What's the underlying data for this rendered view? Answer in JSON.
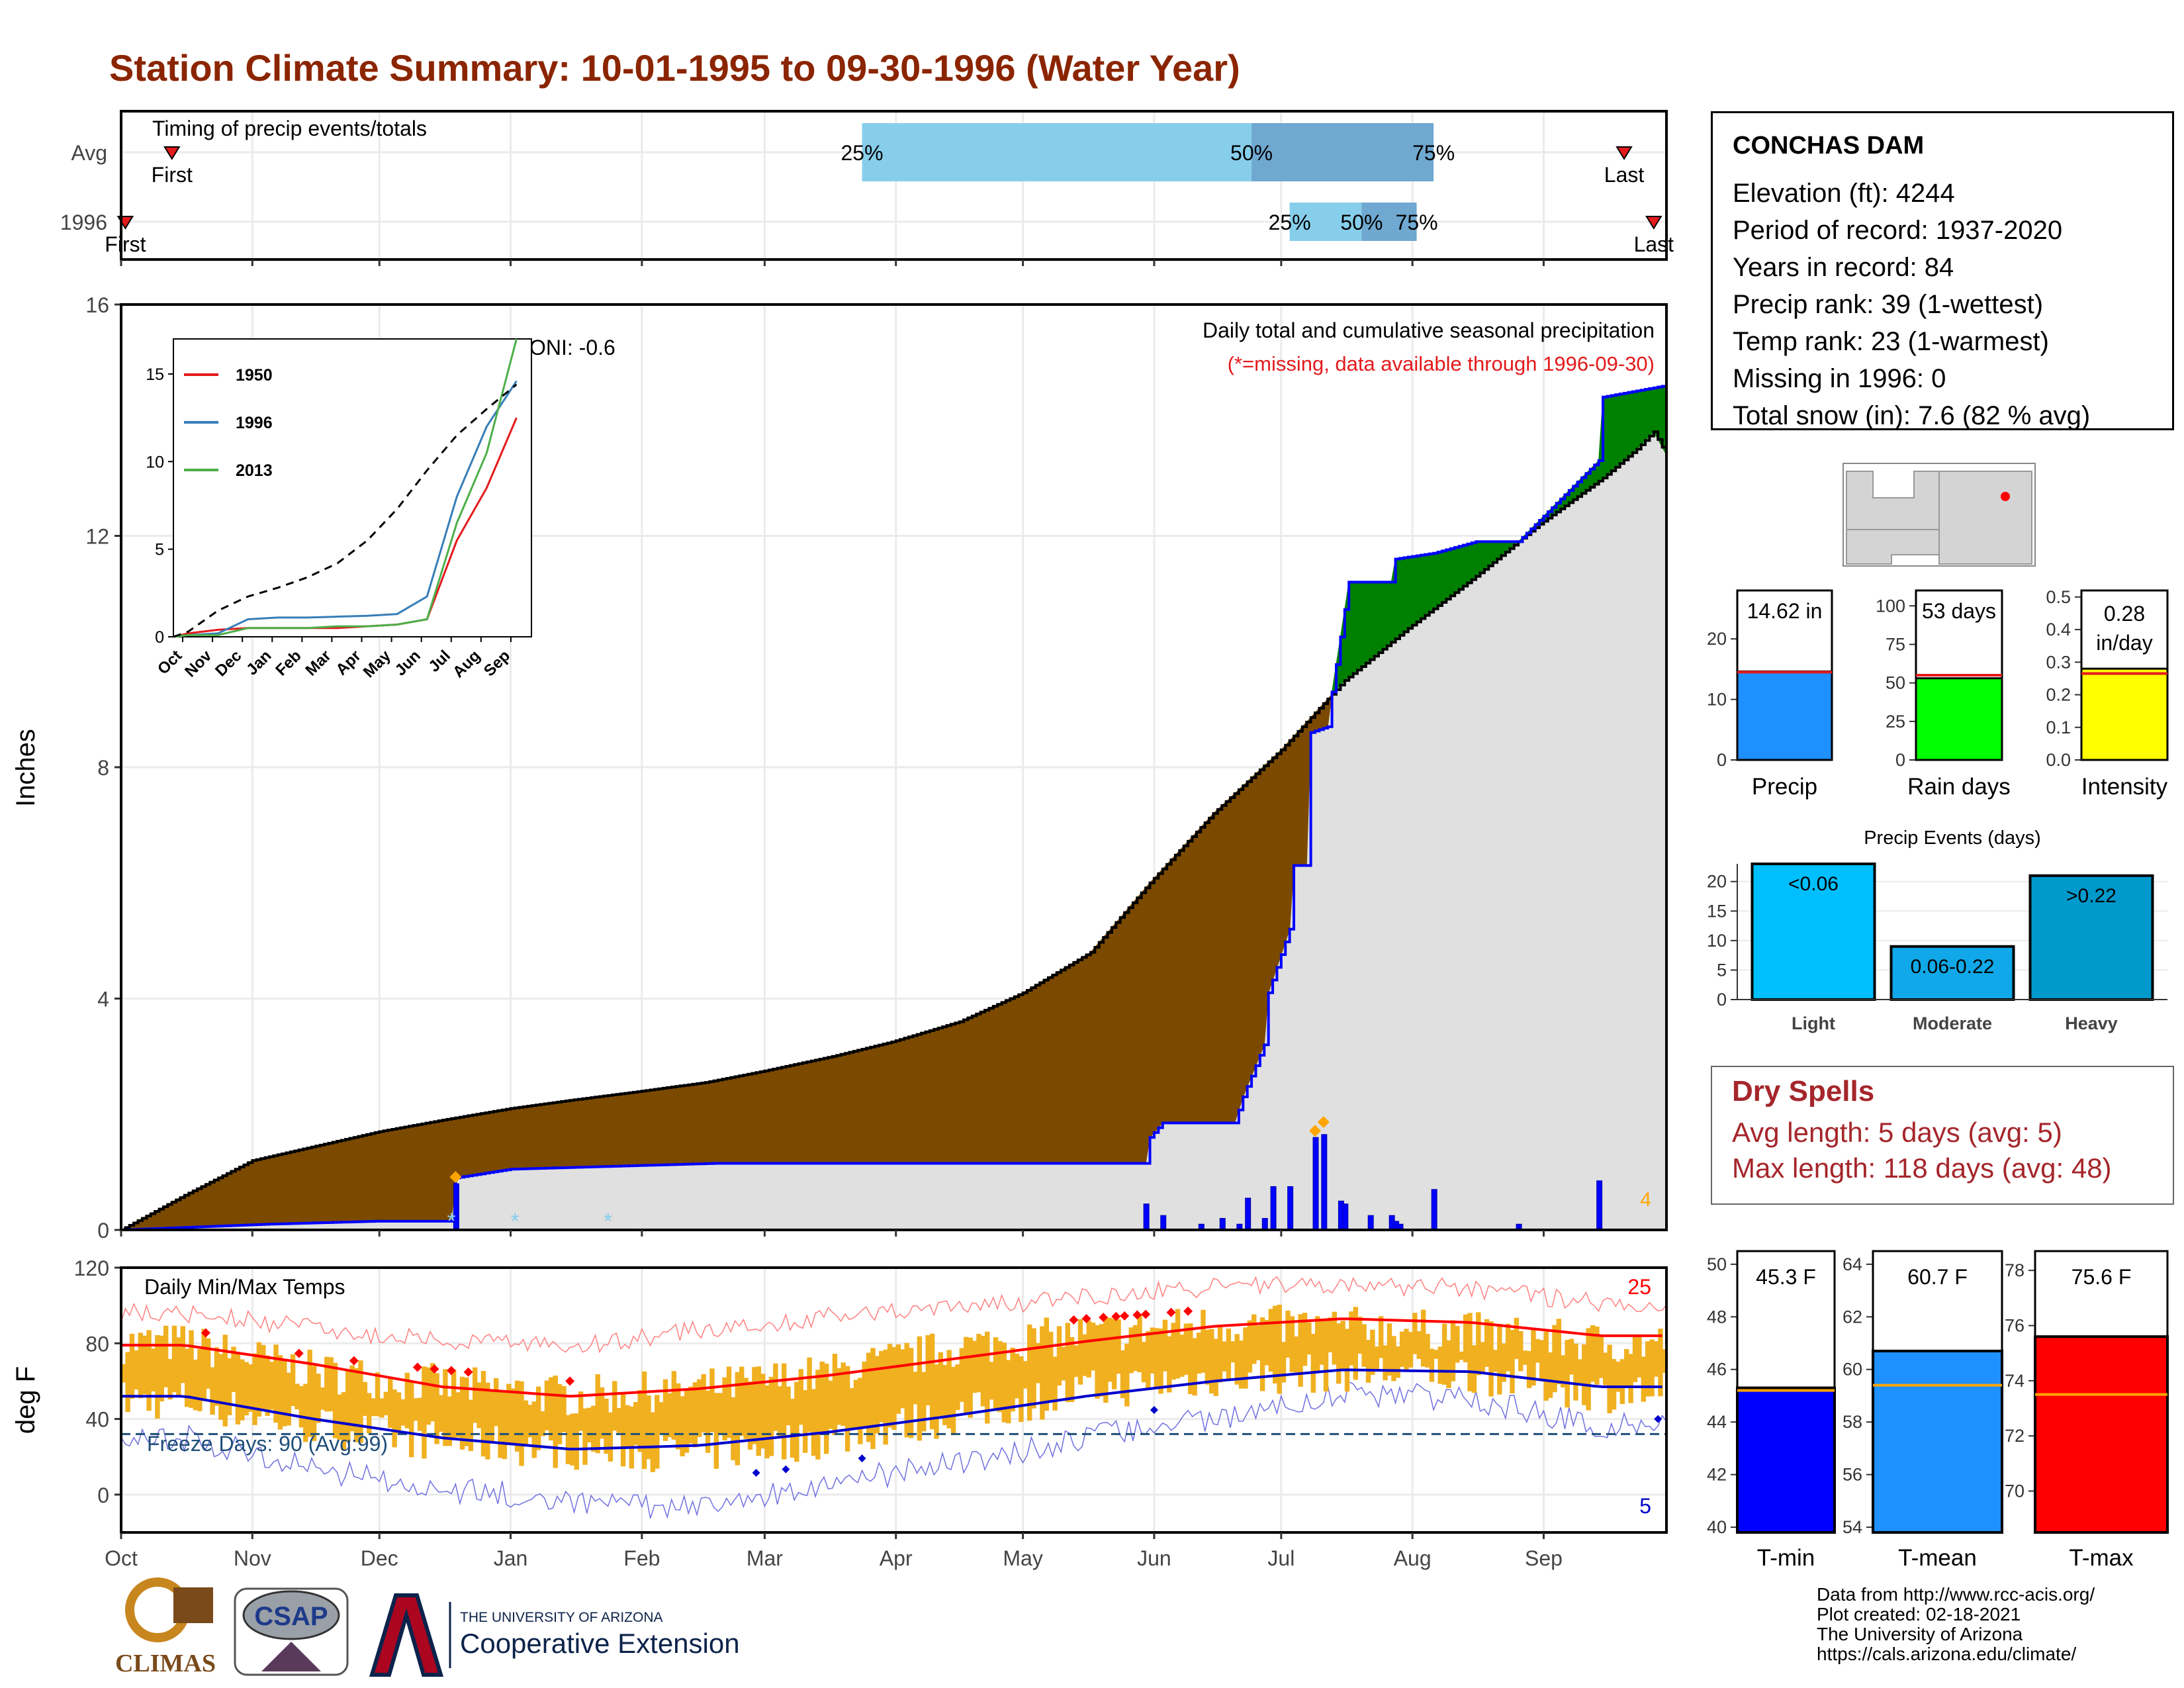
{
  "header": {
    "title": "Station Climate Summary: 10-01-1995 to 09-30-1996 (Water Year)"
  },
  "timing_panel": {
    "label": "Timing of precip events/totals",
    "rows": [
      {
        "label": "Avg",
        "first_label": "First",
        "last_label": "Last",
        "p25_label": "25%",
        "p50_label": "50%",
        "p75_label": "75%",
        "first_day": 12,
        "p25_day": 175,
        "p50_day": 267,
        "p75_day": 310,
        "last_day": 355
      },
      {
        "label": "1996",
        "first_label": "First",
        "last_label": "Last",
        "p25_label": "25%",
        "p50_label": "50%",
        "p75_label": "75%",
        "first_day": 1,
        "p25_day": 276,
        "p50_day": 293,
        "p75_day": 306,
        "last_day": 362
      }
    ]
  },
  "precip_panel": {
    "ylabel": "Inches",
    "yticks": [
      "0",
      "4",
      "8",
      "12",
      "16"
    ],
    "oni_text": "ONI: -0.6",
    "caption": "Daily total and cumulative seasonal precipitation",
    "missing_note": "(*=missing, data available through 1996-09-30)",
    "corner_number": "4",
    "colors": {
      "avg_fill": "#7B4A00",
      "above_fill": "#008000",
      "cum_line": "#0000FF",
      "avg_area": "#E0E0E0",
      "daily_bar": "#0000FF",
      "max_marker": "#FFA500",
      "missing_marker": "#87CEEB"
    }
  },
  "inset": {
    "yticks": [
      "0",
      "5",
      "10",
      "15"
    ],
    "months": [
      "Oct",
      "Nov",
      "Dec",
      "Jan",
      "Feb",
      "Mar",
      "Apr",
      "May",
      "Jun",
      "Jul",
      "Aug",
      "Sep"
    ],
    "legend": [
      {
        "name": "1950",
        "color": "#E41A1C"
      },
      {
        "name": "1996",
        "color": "#377EB8"
      },
      {
        "name": "2013",
        "color": "#4DAF4A"
      }
    ]
  },
  "temp_panel": {
    "label": "Daily Min/Max Temps",
    "ylabel": "deg F",
    "yticks": [
      "0",
      "40",
      "80",
      "120"
    ],
    "freeze_text": "Freeze Days: 90 (Avg:99)",
    "high_count": "25",
    "low_count": "5",
    "colors": {
      "range_bar": "#F0B020",
      "avg_max": "#FF0000",
      "avg_min": "#0000CD",
      "freeze_line": "#1F4E79",
      "record_high": "#FF0000",
      "record_low": "#0000CD"
    }
  },
  "months": [
    "Oct",
    "Nov",
    "Dec",
    "Jan",
    "Feb",
    "Mar",
    "Apr",
    "May",
    "Jun",
    "Jul",
    "Aug",
    "Sep"
  ],
  "station": {
    "name": "CONCHAS DAM",
    "lines": [
      "Elevation (ft): 4244",
      "Period of record: 1937-2020",
      "Years in record: 84",
      "Precip rank: 39 (1-wettest)",
      "Temp rank: 23 (1-warmest)",
      "Missing in 1996: 0",
      "Total snow (in): 7.6 (82 % avg)"
    ]
  },
  "minibars": {
    "precip": {
      "label": "Precip",
      "value_label": "14.62 in",
      "value": 14.62,
      "avg": 14.5,
      "ymax": 28,
      "ticks": [
        "0",
        "10",
        "20"
      ],
      "color": "#1E90FF"
    },
    "raindays": {
      "label": "Rain days",
      "value_label": "53 days",
      "value": 53,
      "avg": 55,
      "ymax": 110,
      "ticks": [
        "0",
        "25",
        "50",
        "75",
        "100"
      ],
      "color": "#00FF00"
    },
    "intensity": {
      "label": "Intensity",
      "value_label_1": "0.28",
      "value_label_2": "in/day",
      "value": 0.28,
      "avg": 0.265,
      "ymax": 0.52,
      "ticks": [
        "0.0",
        "0.1",
        "0.2",
        "0.3",
        "0.4",
        "0.5"
      ],
      "color": "#FFFF00"
    }
  },
  "events": {
    "title": "Precip Events (days)",
    "ticks": [
      "0",
      "5",
      "10",
      "15",
      "20"
    ],
    "categories": [
      "Light",
      "Moderate",
      "Heavy"
    ],
    "bar_labels": [
      "<0.06",
      "0.06-0.22",
      ">0.22"
    ],
    "values": [
      23,
      9,
      21
    ],
    "colors": [
      "#00BFFF",
      "#10A8E8",
      "#0099CC"
    ]
  },
  "dry_spells": {
    "title": "Dry Spells",
    "avg_line": "Avg length: 5 days (avg: 5)",
    "max_line": "Max length: 118 days (avg: 48)"
  },
  "temp_bars": {
    "tmin": {
      "label": "T-min",
      "value_label": "45.3 F",
      "value": 45.3,
      "avg": 45.2,
      "range": [
        40,
        50
      ],
      "ticks": [
        "40",
        "42",
        "44",
        "46",
        "48",
        "50"
      ],
      "color": "#0000FF"
    },
    "tmean": {
      "label": "T-mean",
      "value_label": "60.7 F",
      "value": 60.7,
      "avg": 59.4,
      "range": [
        54,
        64
      ],
      "ticks": [
        "54",
        "56",
        "58",
        "60",
        "62",
        "64"
      ],
      "color": "#1E90FF"
    },
    "tmax": {
      "label": "T-max",
      "value_label": "75.6 F",
      "value": 75.6,
      "avg": 73.5,
      "range": [
        68,
        78
      ],
      "ticks": [
        "70",
        "72",
        "74",
        "76",
        "78"
      ],
      "color": "#FF0000"
    }
  },
  "chart_data": [
    {
      "type": "area",
      "title": "Daily total and cumulative seasonal precipitation",
      "ylabel": "Inches",
      "ylim": [
        0,
        16
      ],
      "x_unit": "day of water year (Oct 1 = 0)",
      "series": [
        {
          "name": "Average cumulative",
          "x": [
            0,
            15,
            31,
            46,
            61,
            76,
            92,
            107,
            123,
            138,
            152,
            168,
            182,
            198,
            213,
            229,
            243,
            258,
            274,
            289,
            304,
            320,
            335,
            350,
            358,
            362,
            365
          ],
          "y": [
            0,
            0.6,
            1.2,
            1.45,
            1.7,
            1.9,
            2.1,
            2.25,
            2.4,
            2.55,
            2.75,
            3.0,
            3.25,
            3.6,
            4.1,
            4.8,
            6.0,
            7.2,
            8.3,
            9.5,
            10.4,
            11.3,
            12.2,
            13.0,
            13.5,
            13.8,
            13.4
          ]
        },
        {
          "name": "1996 cumulative",
          "x": [
            0,
            35,
            60,
            78,
            79,
            92,
            116,
            140,
            242,
            243,
            246,
            263,
            265,
            270,
            271,
            276,
            277,
            280,
            281,
            285,
            286,
            290,
            300,
            301,
            310,
            320,
            330,
            349,
            350,
            365
          ],
          "y": [
            0,
            0.1,
            0.15,
            0.15,
            0.9,
            1.05,
            1.1,
            1.15,
            1.15,
            1.6,
            1.85,
            1.85,
            2.3,
            3.2,
            4.1,
            5.2,
            6.3,
            6.3,
            8.6,
            8.7,
            9.3,
            11.2,
            11.2,
            11.6,
            11.7,
            11.9,
            11.9,
            13.3,
            14.4,
            14.6
          ]
        },
        {
          "name": "1996 daily",
          "x": [
            79,
            242,
            246,
            255,
            260,
            264,
            266,
            270,
            272,
            276,
            282,
            284,
            288,
            289,
            295,
            300,
            301,
            302,
            310,
            330,
            349
          ],
          "y": [
            0.8,
            0.45,
            0.25,
            0.1,
            0.2,
            0.1,
            0.55,
            0.2,
            0.75,
            0.75,
            1.6,
            1.65,
            0.5,
            0.45,
            0.25,
            0.25,
            0.15,
            0.1,
            0.7,
            0.1,
            0.85
          ]
        }
      ]
    },
    {
      "type": "line",
      "title": "",
      "xlabel": "",
      "ylabel": "",
      "ylim": [
        0,
        17
      ],
      "categories": [
        "Oct",
        "Nov",
        "Dec",
        "Jan",
        "Feb",
        "Mar",
        "Apr",
        "May",
        "Jun",
        "Jul",
        "Aug",
        "Sep"
      ],
      "series": [
        {
          "name": "1950",
          "values": [
            0.2,
            0.4,
            0.5,
            0.5,
            0.5,
            0.5,
            0.6,
            0.7,
            1.0,
            5.5,
            8.5,
            12.5
          ]
        },
        {
          "name": "1996",
          "values": [
            0.1,
            0.2,
            1.0,
            1.1,
            1.1,
            1.15,
            1.2,
            1.3,
            2.3,
            8.0,
            12.0,
            14.6
          ]
        },
        {
          "name": "2013",
          "values": [
            0.1,
            0.1,
            0.5,
            0.5,
            0.5,
            0.6,
            0.6,
            0.7,
            1.0,
            6.5,
            10.5,
            17.0
          ]
        },
        {
          "values": [
            0.3,
            1.5,
            2.3,
            2.8,
            3.4,
            4.2,
            5.5,
            7.3,
            9.5,
            11.5,
            13.0,
            14.4
          ]
        }
      ]
    },
    {
      "type": "line",
      "title": "Daily Min/Max Temps",
      "ylabel": "deg F",
      "ylim": [
        -20,
        120
      ],
      "categories": [
        "Oct",
        "Nov",
        "Dec",
        "Jan",
        "Feb",
        "Mar",
        "Apr",
        "May",
        "Jun",
        "Jul",
        "Aug",
        "Sep"
      ],
      "series": [
        {
          "name": "Avg max",
          "values": [
            79,
            69,
            57,
            52,
            56,
            63,
            72,
            81,
            89,
            93,
            91,
            84
          ]
        },
        {
          "name": "Avg min",
          "values": [
            52,
            40,
            30,
            24,
            26,
            33,
            42,
            52,
            60,
            66,
            65,
            57
          ]
        },
        {
          "name": "Record high",
          "values": [
            96,
            88,
            81,
            78,
            87,
            94,
            99,
            104,
            110,
            111,
            109,
            101
          ]
        },
        {
          "name": "Record low",
          "values": [
            30,
            14,
            3,
            -3,
            -8,
            6,
            17,
            30,
            40,
            54,
            50,
            37
          ]
        },
        {
          "name": "1996 max",
          "values": [
            80,
            65,
            58,
            52,
            56,
            64,
            78,
            85,
            90,
            89,
            86,
            80
          ]
        },
        {
          "name": "1996 min",
          "values": [
            50,
            36,
            28,
            24,
            22,
            30,
            42,
            55,
            62,
            65,
            64,
            54
          ]
        }
      ],
      "freeze_threshold": 32
    },
    {
      "type": "bar",
      "title": "Precip Events (days)",
      "categories": [
        "Light",
        "Moderate",
        "Heavy"
      ],
      "values": [
        23,
        9,
        21
      ],
      "ylim": [
        0,
        23
      ]
    }
  ]
}
